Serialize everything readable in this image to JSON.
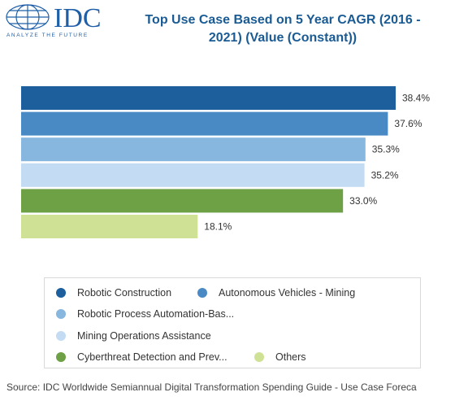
{
  "logo": {
    "text": "IDC",
    "tagline": "ANALYZE THE FUTURE"
  },
  "chart_data": {
    "type": "bar",
    "orientation": "horizontal",
    "title": "Top Use Case Based on 5 Year CAGR (2016 - 2021) (Value (Constant))",
    "title_lines": [
      "Top Use Case Based on 5 Year CAGR (2016 -",
      "2021) (Value (Constant))"
    ],
    "categories": [
      "Robotic Construction",
      "Autonomous Vehicles - Mining",
      "Robotic Process Automation-Bas...",
      "Mining Operations Assistance",
      "Cyberthreat Detection and Prev...",
      "Others"
    ],
    "values": [
      38.4,
      37.6,
      35.3,
      35.2,
      33.0,
      18.1
    ],
    "value_labels": [
      "38.4%",
      "37.6%",
      "35.3%",
      "35.2%",
      "33.0%",
      "18.1%"
    ],
    "colors": [
      "#1c5f9c",
      "#4a8ac4",
      "#87b6de",
      "#c3dcf3",
      "#6ea046",
      "#cfe194"
    ],
    "xlim": [
      0,
      38.4
    ],
    "grid": false,
    "legend": "bottom"
  },
  "source": "Source: IDC Worldwide Semiannual Digital Transformation Spending Guide - Use Case Foreca"
}
